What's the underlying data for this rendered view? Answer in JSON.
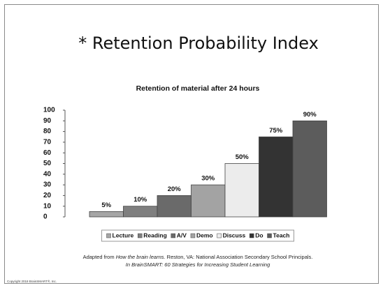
{
  "title": "* Retention Probability Index",
  "chart_data": {
    "type": "bar",
    "title": "Retention of material after 24 hours",
    "categories": [
      "Lecture",
      "Reading",
      "A/V",
      "Demo",
      "Discuss",
      "Do",
      "Teach"
    ],
    "values": [
      5,
      10,
      20,
      30,
      50,
      75,
      90
    ],
    "value_labels": [
      "5%",
      "10%",
      "20%",
      "30%",
      "50%",
      "75%",
      "90%"
    ],
    "colors": [
      "#a6a6a6",
      "#7f7f7f",
      "#6a6a6a",
      "#a3a3a3",
      "#ececec",
      "#333333",
      "#5c5c5c"
    ],
    "ylim": [
      0,
      100
    ],
    "yticks": [
      0,
      10,
      20,
      30,
      40,
      50,
      60,
      70,
      80,
      90,
      100
    ],
    "grid": false,
    "legend": "bottom"
  },
  "source": {
    "prefix": "Adapted from",
    "book": "How the brain learns.",
    "rest": "Reston, VA: National Association Secondary School Principals.",
    "line2": "In BrainSMART: 60 Strategies for Increasing Student Learning"
  },
  "copyright": "Copyright 2018 BrainSMART®, Inc."
}
